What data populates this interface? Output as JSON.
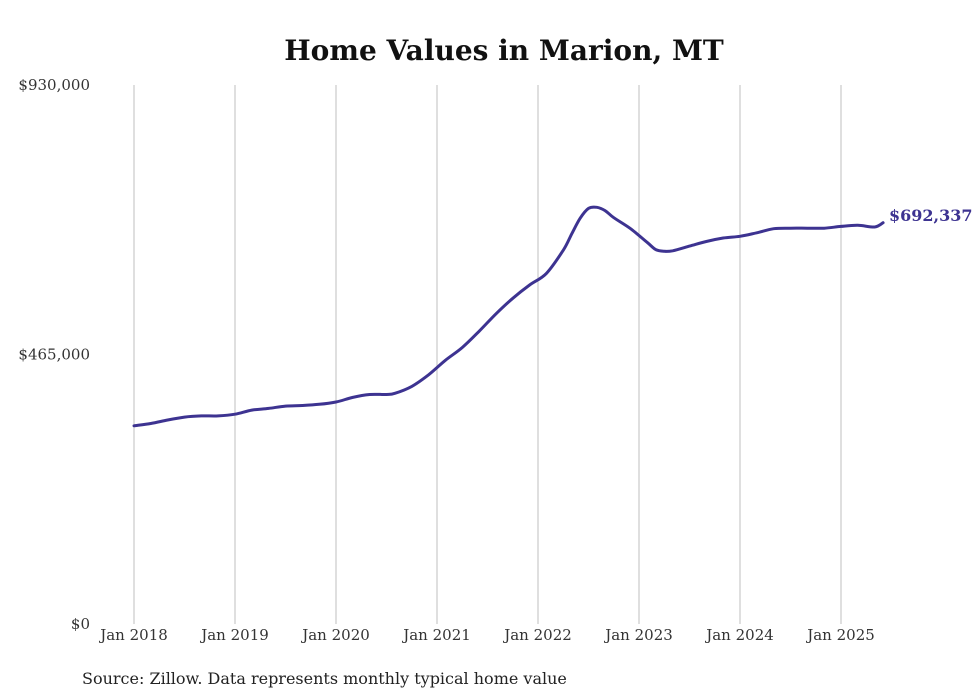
{
  "colors": {
    "line": "#3d3391",
    "grid": "#bfbfbf"
  },
  "source": "Source: Zillow. Data represents monthly typical home value",
  "chart_data": {
    "type": "line",
    "title": "Home Values in Marion, MT",
    "xlabel": "",
    "ylabel": "",
    "ylim": [
      0,
      930000
    ],
    "yticks": [
      0,
      465000,
      930000
    ],
    "ytick_labels": [
      "$0",
      "$465,000",
      "$930,000"
    ],
    "xlim": [
      "2018-01",
      "2025-05"
    ],
    "xticks": [
      "2018-01",
      "2019-01",
      "2020-01",
      "2021-01",
      "2022-01",
      "2023-01",
      "2024-01",
      "2025-01"
    ],
    "xtick_labels": [
      "Jan 2018",
      "Jan 2019",
      "Jan 2020",
      "Jan 2021",
      "Jan 2022",
      "Jan 2023",
      "Jan 2024",
      "Jan 2025"
    ],
    "grid": {
      "vertical": true,
      "horizontal": false
    },
    "end_label": "$692,337",
    "series": [
      {
        "points": [
          [
            "2018-01",
            342000
          ],
          [
            "2018-03",
            346000
          ],
          [
            "2018-05",
            352000
          ],
          [
            "2018-07",
            357000
          ],
          [
            "2018-09",
            359000
          ],
          [
            "2018-11",
            359000
          ],
          [
            "2019-01",
            362000
          ],
          [
            "2019-03",
            369000
          ],
          [
            "2019-05",
            372000
          ],
          [
            "2019-07",
            376000
          ],
          [
            "2019-09",
            377000
          ],
          [
            "2019-11",
            379000
          ],
          [
            "2020-01",
            383000
          ],
          [
            "2020-03",
            391000
          ],
          [
            "2020-05",
            396000
          ],
          [
            "2020-07",
            396000
          ],
          [
            "2020-08",
            398000
          ],
          [
            "2020-10",
            410000
          ],
          [
            "2020-12",
            430000
          ],
          [
            "2021-02",
            455000
          ],
          [
            "2021-04",
            477000
          ],
          [
            "2021-06",
            505000
          ],
          [
            "2021-08",
            535000
          ],
          [
            "2021-10",
            562000
          ],
          [
            "2021-12",
            585000
          ],
          [
            "2022-02",
            605000
          ],
          [
            "2022-04",
            645000
          ],
          [
            "2022-05",
            673000
          ],
          [
            "2022-06",
            700000
          ],
          [
            "2022-07",
            717000
          ],
          [
            "2022-08",
            719000
          ],
          [
            "2022-09",
            713000
          ],
          [
            "2022-10",
            701000
          ],
          [
            "2022-12",
            682000
          ],
          [
            "2023-02",
            658000
          ],
          [
            "2023-03",
            646000
          ],
          [
            "2023-04",
            643000
          ],
          [
            "2023-05",
            644000
          ],
          [
            "2023-07",
            652000
          ],
          [
            "2023-09",
            660000
          ],
          [
            "2023-11",
            666000
          ],
          [
            "2024-01",
            669000
          ],
          [
            "2024-03",
            675000
          ],
          [
            "2024-05",
            682000
          ],
          [
            "2024-07",
            683000
          ],
          [
            "2024-09",
            683000
          ],
          [
            "2024-11",
            683000
          ],
          [
            "2025-01",
            686000
          ],
          [
            "2025-03",
            688000
          ],
          [
            "2025-05",
            685000
          ],
          [
            "2025-06",
            692337
          ]
        ]
      }
    ]
  }
}
